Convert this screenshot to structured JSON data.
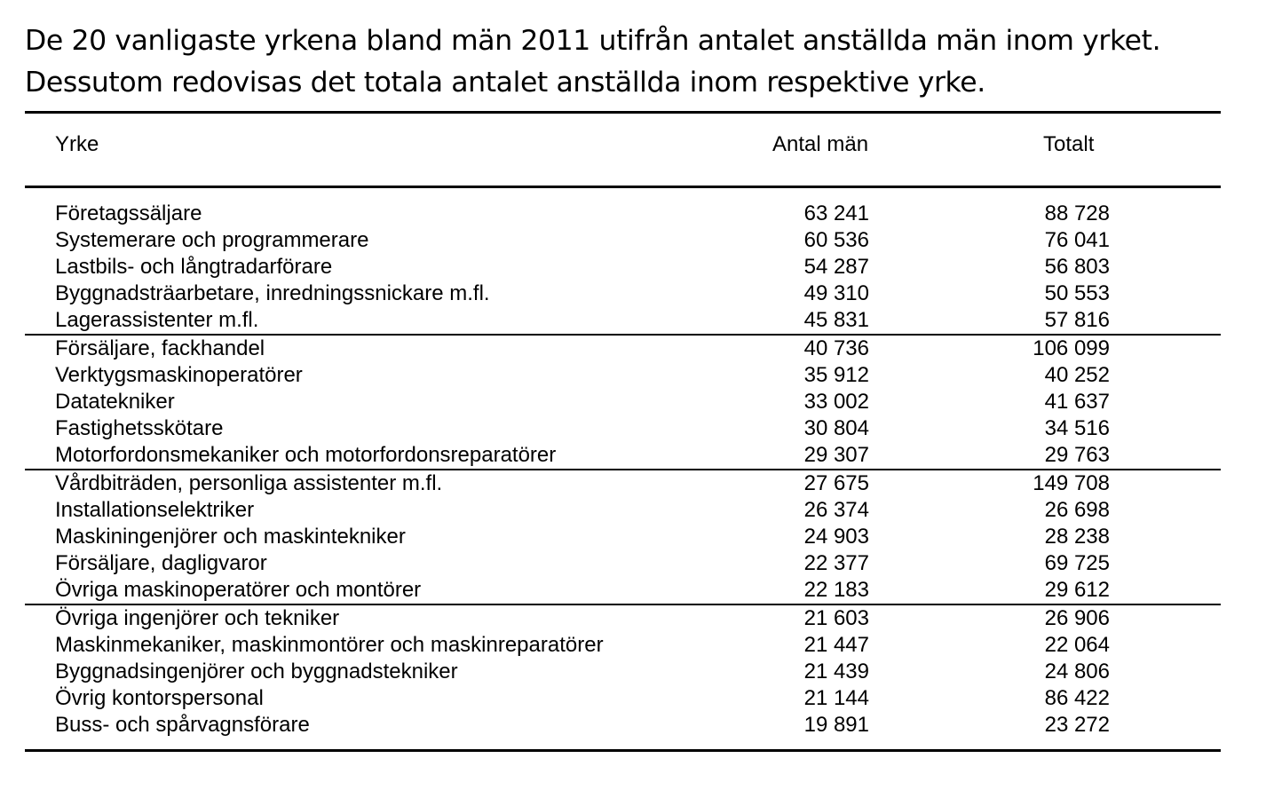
{
  "header": {
    "title_lines": [
      "De 20 vanligaste yrkena bland män 2011 utifrån antalet anställda män inom yrket.",
      "Dessutom redovisas det totala antalet anställda inom respektive yrke."
    ]
  },
  "table": {
    "columns": [
      "Yrke",
      "Antal män",
      "Totalt"
    ],
    "groups": [
      [
        [
          "Företagssäljare",
          "63 241",
          "88 728"
        ],
        [
          "Systemerare och programmerare",
          "60 536",
          "76 041"
        ],
        [
          "Lastbils- och långtradarförare",
          "54 287",
          "56 803"
        ],
        [
          "Byggnadsträarbetare, inredningssnickare m.fl.",
          "49 310",
          "50 553"
        ],
        [
          "Lagerassistenter m.fl.",
          "45 831",
          "57 816"
        ]
      ],
      [
        [
          "Försäljare, fackhandel",
          "40 736",
          "106 099"
        ],
        [
          "Verktygsmaskinoperatörer",
          "35 912",
          "40 252"
        ],
        [
          "Datatekniker",
          "33 002",
          "41 637"
        ],
        [
          "Fastighetsskötare",
          "30 804",
          "34 516"
        ],
        [
          "Motorfordonsmekaniker och motorfordonsreparatörer",
          "29 307",
          "29 763"
        ]
      ],
      [
        [
          "Vårdbiträden, personliga assistenter m.fl.",
          "27 675",
          "149 708"
        ],
        [
          "Installationselektriker",
          "26 374",
          "26 698"
        ],
        [
          "Maskiningenjörer och maskintekniker",
          "24 903",
          "28 238"
        ],
        [
          "Försäljare, dagligvaror",
          "22 377",
          "69 725"
        ],
        [
          "Övriga maskinoperatörer och montörer",
          "22 183",
          "29 612"
        ]
      ],
      [
        [
          "Övriga ingenjörer och tekniker",
          "21 603",
          "26 906"
        ],
        [
          "Maskinmekaniker, maskinmontörer och maskinreparatörer",
          "21 447",
          "22 064"
        ],
        [
          "Byggnadsingenjörer och byggnadstekniker",
          "21 439",
          "24 806"
        ],
        [
          "Övrig kontorspersonal",
          "21 144",
          "86 422"
        ],
        [
          "Buss- och spårvagnsförare",
          "19 891",
          "23 272"
        ]
      ]
    ]
  }
}
